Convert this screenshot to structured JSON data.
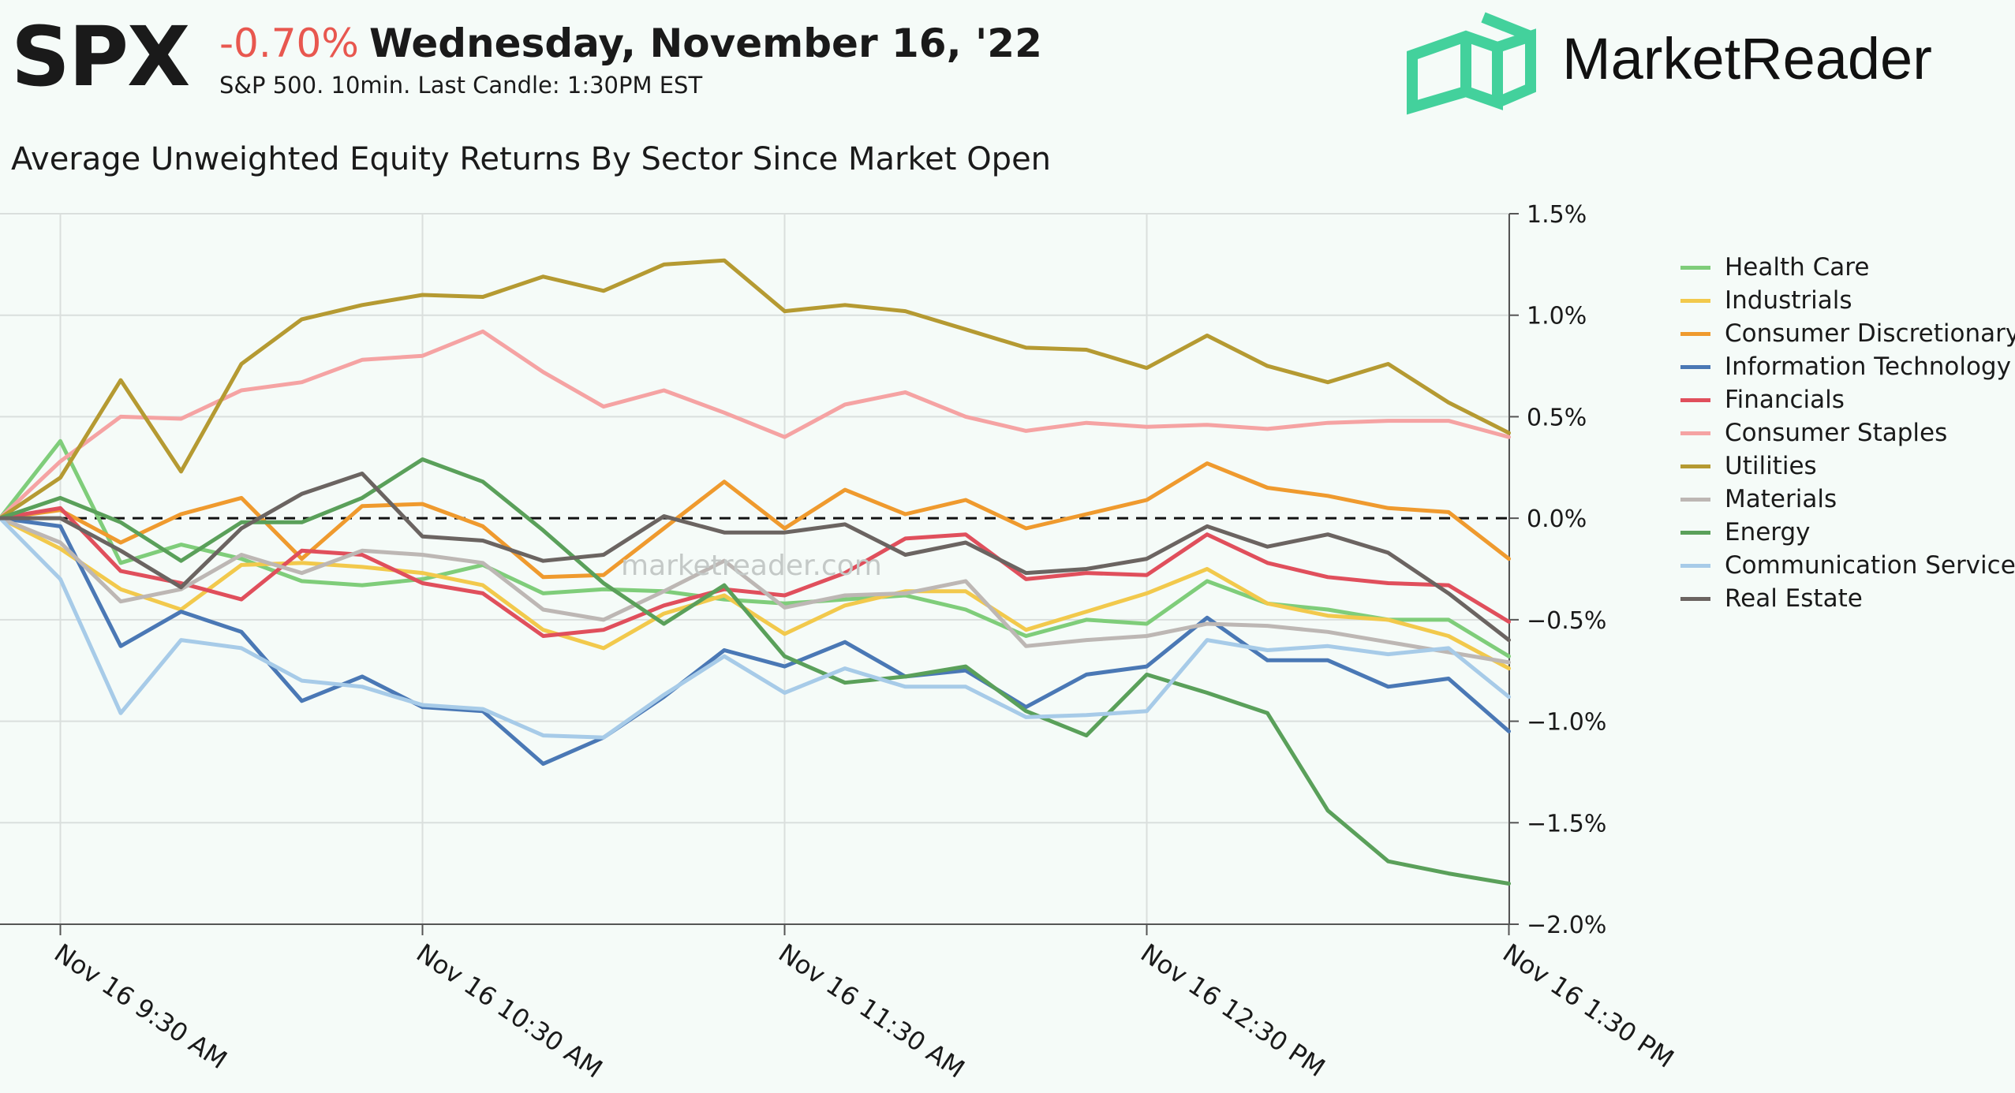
{
  "header": {
    "ticker": "SPX",
    "change": "-0.70%",
    "date": "Wednesday, November 16, '22",
    "subtitle": "S&P 500. 10min. Last Candle: 1:30PM EST",
    "brand": "MarketReader",
    "brand_color": "#43d19c",
    "change_color": "#e8574f"
  },
  "watermark": "marketreader.com",
  "chart_data": {
    "type": "line",
    "title": "Average Unweighted Equity Returns By Sector Since Market Open",
    "xlabel": "",
    "ylabel": "",
    "ylim": [
      -2.0,
      1.5
    ],
    "yticks": [
      1.5,
      1.0,
      0.5,
      0.0,
      -0.5,
      -1.0,
      -1.5,
      -2.0
    ],
    "ytick_labels": [
      "1.5%",
      "1.0%",
      "0.5%",
      "0.0%",
      "−0.5%",
      "−1.0%",
      "−1.5%",
      "−2.0%"
    ],
    "x_labels": [
      "Nov 16 9:30 AM",
      "Nov 16 10:30 AM",
      "Nov 16 11:30 AM",
      "Nov 16 12:30 PM",
      "Nov 16 1:30 PM"
    ],
    "x_label_positions": [
      1,
      7,
      13,
      19,
      25
    ],
    "zero_line": "dashed",
    "grid": true,
    "legend_position": "right",
    "series": [
      {
        "name": "Health Care",
        "color": "#7fcd7a",
        "values": [
          0.0,
          0.38,
          -0.22,
          -0.13,
          -0.2,
          -0.31,
          -0.33,
          -0.3,
          -0.23,
          -0.37,
          -0.35,
          -0.36,
          -0.4,
          -0.42,
          -0.4,
          -0.38,
          -0.45,
          -0.58,
          -0.5,
          -0.52,
          -0.31,
          -0.42,
          -0.45,
          -0.5,
          -0.5,
          -0.68
        ]
      },
      {
        "name": "Industrials",
        "color": "#f2c94c",
        "values": [
          0.0,
          -0.15,
          -0.35,
          -0.45,
          -0.23,
          -0.22,
          -0.24,
          -0.27,
          -0.33,
          -0.55,
          -0.64,
          -0.47,
          -0.38,
          -0.57,
          -0.43,
          -0.36,
          -0.36,
          -0.55,
          -0.46,
          -0.37,
          -0.25,
          -0.42,
          -0.48,
          -0.5,
          -0.58,
          -0.74
        ]
      },
      {
        "name": "Consumer Discretionary",
        "color": "#ef9a2e",
        "values": [
          0.0,
          0.04,
          -0.12,
          0.02,
          0.1,
          -0.2,
          0.06,
          0.07,
          -0.04,
          -0.29,
          -0.28,
          -0.05,
          0.18,
          -0.05,
          0.14,
          0.02,
          0.09,
          -0.05,
          0.02,
          0.09,
          0.27,
          0.15,
          0.11,
          0.05,
          0.03,
          -0.2
        ]
      },
      {
        "name": "Information Technology",
        "color": "#4a78b5",
        "values": [
          0.0,
          -0.04,
          -0.63,
          -0.46,
          -0.56,
          -0.9,
          -0.78,
          -0.93,
          -0.95,
          -1.21,
          -1.08,
          -0.88,
          -0.65,
          -0.73,
          -0.61,
          -0.78,
          -0.75,
          -0.93,
          -0.77,
          -0.73,
          -0.49,
          -0.7,
          -0.7,
          -0.83,
          -0.79,
          -1.05
        ]
      },
      {
        "name": "Financials",
        "color": "#e04f5c",
        "values": [
          0.0,
          0.05,
          -0.26,
          -0.32,
          -0.4,
          -0.16,
          -0.18,
          -0.32,
          -0.37,
          -0.58,
          -0.55,
          -0.43,
          -0.35,
          -0.38,
          -0.27,
          -0.1,
          -0.08,
          -0.3,
          -0.27,
          -0.28,
          -0.08,
          -0.22,
          -0.29,
          -0.32,
          -0.33,
          -0.51
        ]
      },
      {
        "name": "Consumer Staples",
        "color": "#f5a3a3",
        "values": [
          0.0,
          0.28,
          0.5,
          0.49,
          0.63,
          0.67,
          0.78,
          0.8,
          0.92,
          0.72,
          0.55,
          0.63,
          0.52,
          0.4,
          0.56,
          0.62,
          0.5,
          0.43,
          0.47,
          0.45,
          0.46,
          0.44,
          0.47,
          0.48,
          0.48,
          0.4
        ]
      },
      {
        "name": "Utilities",
        "color": "#b59a32",
        "values": [
          0.0,
          0.2,
          0.68,
          0.23,
          0.76,
          0.98,
          1.05,
          1.1,
          1.09,
          1.19,
          1.12,
          1.25,
          1.27,
          1.02,
          1.05,
          1.02,
          0.93,
          0.84,
          0.83,
          0.74,
          0.9,
          0.75,
          0.67,
          0.76,
          0.57,
          0.42
        ]
      },
      {
        "name": "Materials",
        "color": "#bdb7b4",
        "values": [
          0.0,
          -0.12,
          -0.41,
          -0.35,
          -0.18,
          -0.27,
          -0.16,
          -0.18,
          -0.22,
          -0.45,
          -0.5,
          -0.36,
          -0.21,
          -0.44,
          -0.38,
          -0.37,
          -0.31,
          -0.63,
          -0.6,
          -0.58,
          -0.52,
          -0.53,
          -0.56,
          -0.61,
          -0.66,
          -0.71
        ]
      },
      {
        "name": "Energy",
        "color": "#5aa05a",
        "values": [
          0.0,
          0.1,
          -0.02,
          -0.21,
          -0.02,
          -0.02,
          0.1,
          0.29,
          0.18,
          -0.06,
          -0.32,
          -0.52,
          -0.33,
          -0.68,
          -0.81,
          -0.78,
          -0.73,
          -0.95,
          -1.07,
          -0.77,
          -0.86,
          -0.96,
          -1.44,
          -1.69,
          -1.75,
          -1.8
        ]
      },
      {
        "name": "Communication Services",
        "color": "#a7cbe8",
        "values": [
          0.0,
          -0.3,
          -0.96,
          -0.6,
          -0.64,
          -0.8,
          -0.83,
          -0.92,
          -0.94,
          -1.07,
          -1.08,
          -0.87,
          -0.68,
          -0.86,
          -0.74,
          -0.83,
          -0.83,
          -0.98,
          -0.97,
          -0.95,
          -0.6,
          -0.65,
          -0.63,
          -0.67,
          -0.64,
          -0.88
        ]
      },
      {
        "name": "Real Estate",
        "color": "#6b6461",
        "values": [
          0.0,
          0.0,
          -0.16,
          -0.34,
          -0.05,
          0.12,
          0.22,
          -0.09,
          -0.11,
          -0.21,
          -0.18,
          0.01,
          -0.07,
          -0.07,
          -0.03,
          -0.18,
          -0.12,
          -0.27,
          -0.25,
          -0.2,
          -0.04,
          -0.14,
          -0.08,
          -0.17,
          -0.37,
          -0.6
        ]
      }
    ]
  }
}
